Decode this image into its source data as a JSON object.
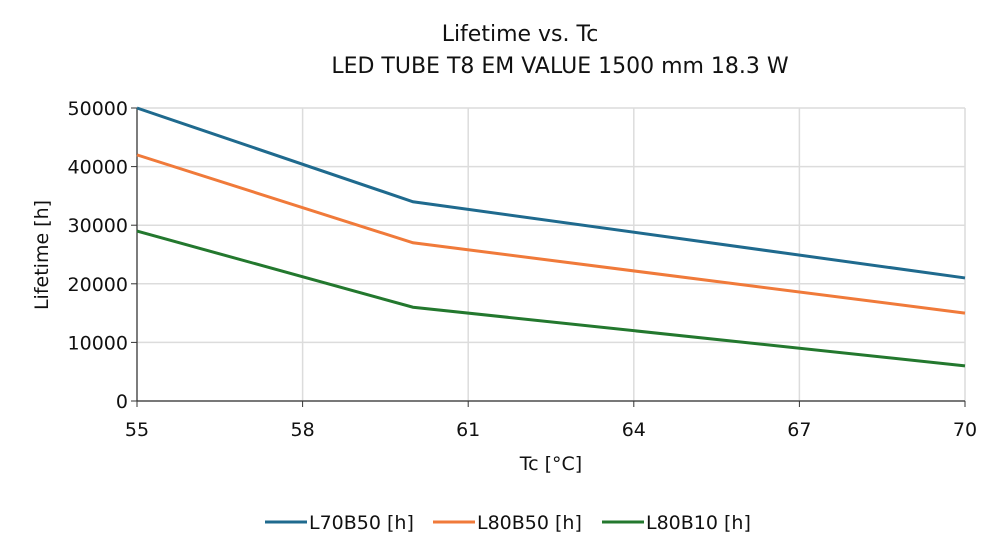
{
  "chart_data": {
    "type": "line",
    "title": "Lifetime vs. Tc",
    "subtitle": "LED TUBE T8 EM VALUE 1500 mm 18.3 W",
    "xlabel": "Tc [°C]",
    "ylabel": "Lifetime [h]",
    "xlim": [
      55,
      70
    ],
    "ylim": [
      0,
      50000
    ],
    "xticks": [
      55,
      58,
      61,
      64,
      67,
      70
    ],
    "yticks": [
      0,
      10000,
      20000,
      30000,
      40000,
      50000
    ],
    "grid": true,
    "legend_position": "bottom",
    "x": [
      55,
      60,
      70
    ],
    "series": [
      {
        "name": "L70B50 [h]",
        "color": "#1f6a8e",
        "values": [
          50000,
          34000,
          21000
        ]
      },
      {
        "name": "L80B50 [h]",
        "color": "#f07a3a",
        "values": [
          42000,
          27000,
          15000
        ]
      },
      {
        "name": "L80B10 [h]",
        "color": "#23782e",
        "values": [
          29000,
          16000,
          6000
        ]
      }
    ]
  }
}
